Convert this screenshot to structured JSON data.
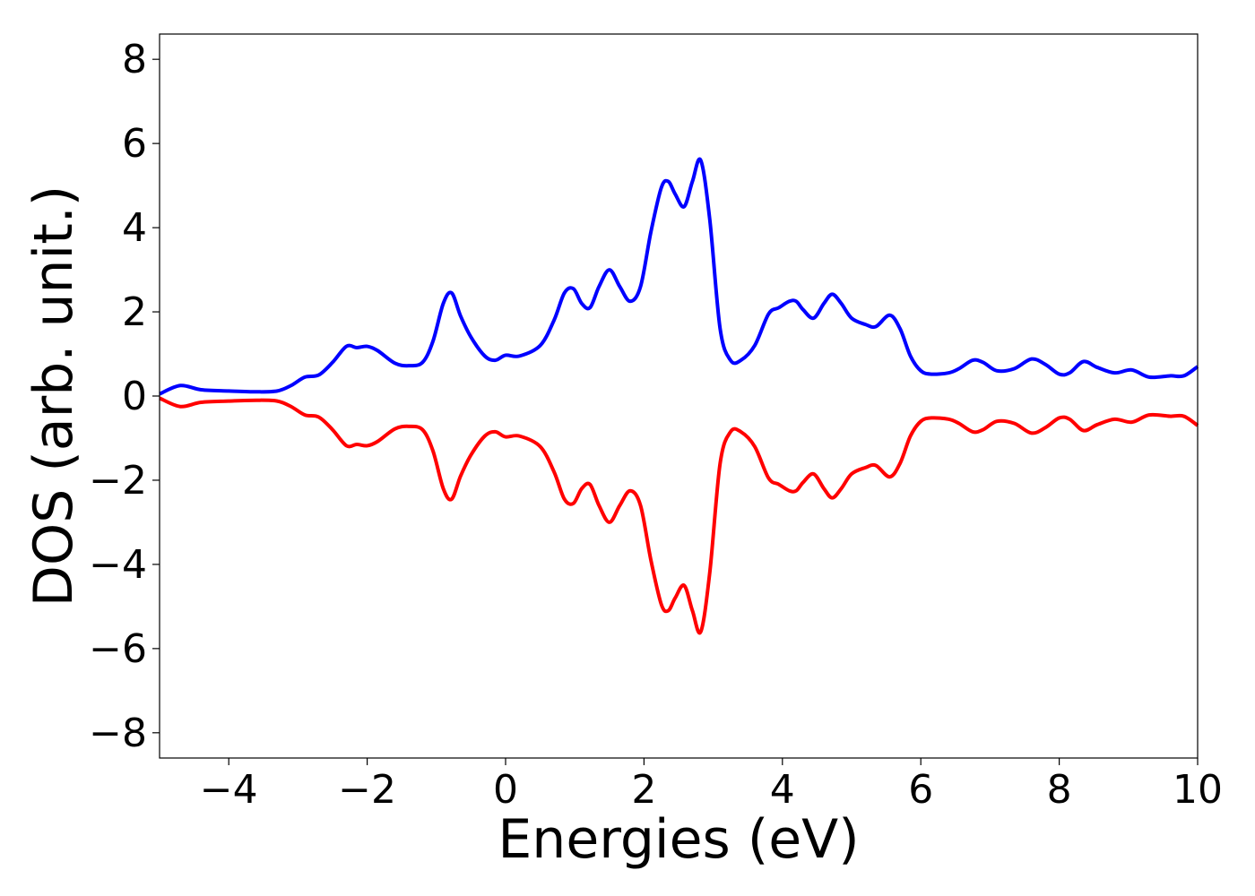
{
  "chart_data": {
    "type": "line",
    "title": "",
    "xlabel": "Energies (eV)",
    "ylabel": "DOS (arb. unit.)",
    "xlim": [
      -5,
      10
    ],
    "ylim": [
      -8.6,
      8.6
    ],
    "xticks": [
      -4,
      -2,
      0,
      2,
      4,
      6,
      8,
      10
    ],
    "xtick_labels": [
      "−4",
      "−2",
      "0",
      "2",
      "4",
      "6",
      "8",
      "10"
    ],
    "yticks": [
      -8,
      -6,
      -4,
      -2,
      0,
      2,
      4,
      6,
      8
    ],
    "ytick_labels": [
      "−8",
      "−6",
      "−4",
      "−2",
      "0",
      "2",
      "4",
      "6",
      "8"
    ],
    "grid": false,
    "legend": "none",
    "series": [
      {
        "color": "#0000ff",
        "x": [
          -5.0,
          -4.7,
          -4.4,
          -4.0,
          -3.6,
          -3.3,
          -3.1,
          -2.9,
          -2.7,
          -2.5,
          -2.3,
          -2.15,
          -2.0,
          -1.85,
          -1.6,
          -1.4,
          -1.2,
          -1.05,
          -0.9,
          -0.78,
          -0.65,
          -0.5,
          -0.3,
          -0.15,
          0.0,
          0.2,
          0.5,
          0.7,
          0.85,
          0.98,
          1.1,
          1.22,
          1.35,
          1.5,
          1.65,
          1.8,
          1.95,
          2.1,
          2.25,
          2.35,
          2.45,
          2.58,
          2.7,
          2.82,
          2.95,
          3.1,
          3.25,
          3.4,
          3.6,
          3.8,
          3.95,
          4.1,
          4.2,
          4.3,
          4.45,
          4.6,
          4.72,
          4.85,
          5.0,
          5.2,
          5.35,
          5.55,
          5.7,
          5.85,
          6.0,
          6.15,
          6.4,
          6.55,
          6.75,
          6.9,
          7.1,
          7.35,
          7.6,
          7.8,
          8.0,
          8.15,
          8.35,
          8.55,
          8.8,
          9.05,
          9.3,
          9.6,
          9.8,
          10.0
        ],
        "y": [
          0.05,
          0.25,
          0.15,
          0.12,
          0.1,
          0.12,
          0.25,
          0.45,
          0.5,
          0.8,
          1.18,
          1.15,
          1.18,
          1.08,
          0.78,
          0.72,
          0.8,
          1.3,
          2.2,
          2.45,
          1.9,
          1.4,
          0.95,
          0.85,
          0.97,
          0.95,
          1.2,
          1.8,
          2.45,
          2.55,
          2.2,
          2.1,
          2.6,
          3.0,
          2.6,
          2.25,
          2.6,
          3.9,
          4.95,
          5.1,
          4.8,
          4.5,
          5.1,
          5.6,
          4.2,
          1.6,
          0.85,
          0.85,
          1.2,
          1.95,
          2.1,
          2.25,
          2.25,
          2.05,
          1.85,
          2.2,
          2.42,
          2.2,
          1.85,
          1.7,
          1.65,
          1.92,
          1.6,
          0.95,
          0.6,
          0.52,
          0.55,
          0.65,
          0.85,
          0.8,
          0.6,
          0.65,
          0.88,
          0.75,
          0.52,
          0.55,
          0.82,
          0.68,
          0.55,
          0.62,
          0.45,
          0.48,
          0.48,
          0.7
        ]
      },
      {
        "color": "#ff0000",
        "x": [
          -5.0,
          -4.7,
          -4.4,
          -4.0,
          -3.6,
          -3.3,
          -3.1,
          -2.9,
          -2.7,
          -2.5,
          -2.3,
          -2.15,
          -2.0,
          -1.85,
          -1.6,
          -1.4,
          -1.2,
          -1.05,
          -0.9,
          -0.78,
          -0.65,
          -0.5,
          -0.3,
          -0.15,
          0.0,
          0.2,
          0.5,
          0.7,
          0.85,
          0.98,
          1.1,
          1.22,
          1.35,
          1.5,
          1.65,
          1.8,
          1.95,
          2.1,
          2.25,
          2.35,
          2.45,
          2.58,
          2.7,
          2.82,
          2.95,
          3.1,
          3.25,
          3.4,
          3.6,
          3.8,
          3.95,
          4.1,
          4.2,
          4.3,
          4.45,
          4.6,
          4.72,
          4.85,
          5.0,
          5.2,
          5.35,
          5.55,
          5.7,
          5.85,
          6.0,
          6.15,
          6.4,
          6.55,
          6.75,
          6.9,
          7.1,
          7.35,
          7.6,
          7.8,
          8.0,
          8.15,
          8.35,
          8.55,
          8.8,
          9.05,
          9.3,
          9.6,
          9.8,
          10.0
        ],
        "y": [
          -0.05,
          -0.25,
          -0.15,
          -0.12,
          -0.1,
          -0.12,
          -0.25,
          -0.45,
          -0.5,
          -0.8,
          -1.18,
          -1.15,
          -1.18,
          -1.08,
          -0.78,
          -0.72,
          -0.8,
          -1.3,
          -2.2,
          -2.45,
          -1.9,
          -1.4,
          -0.95,
          -0.85,
          -0.97,
          -0.95,
          -1.2,
          -1.8,
          -2.45,
          -2.55,
          -2.2,
          -2.1,
          -2.6,
          -3.0,
          -2.6,
          -2.25,
          -2.6,
          -3.9,
          -4.95,
          -5.1,
          -4.8,
          -4.5,
          -5.1,
          -5.6,
          -4.2,
          -1.6,
          -0.85,
          -0.85,
          -1.2,
          -1.95,
          -2.1,
          -2.25,
          -2.25,
          -2.05,
          -1.85,
          -2.2,
          -2.42,
          -2.2,
          -1.85,
          -1.7,
          -1.65,
          -1.92,
          -1.6,
          -0.95,
          -0.6,
          -0.52,
          -0.55,
          -0.65,
          -0.85,
          -0.8,
          -0.6,
          -0.65,
          -0.88,
          -0.75,
          -0.52,
          -0.55,
          -0.82,
          -0.68,
          -0.55,
          -0.62,
          -0.45,
          -0.48,
          -0.48,
          -0.7
        ]
      }
    ]
  }
}
